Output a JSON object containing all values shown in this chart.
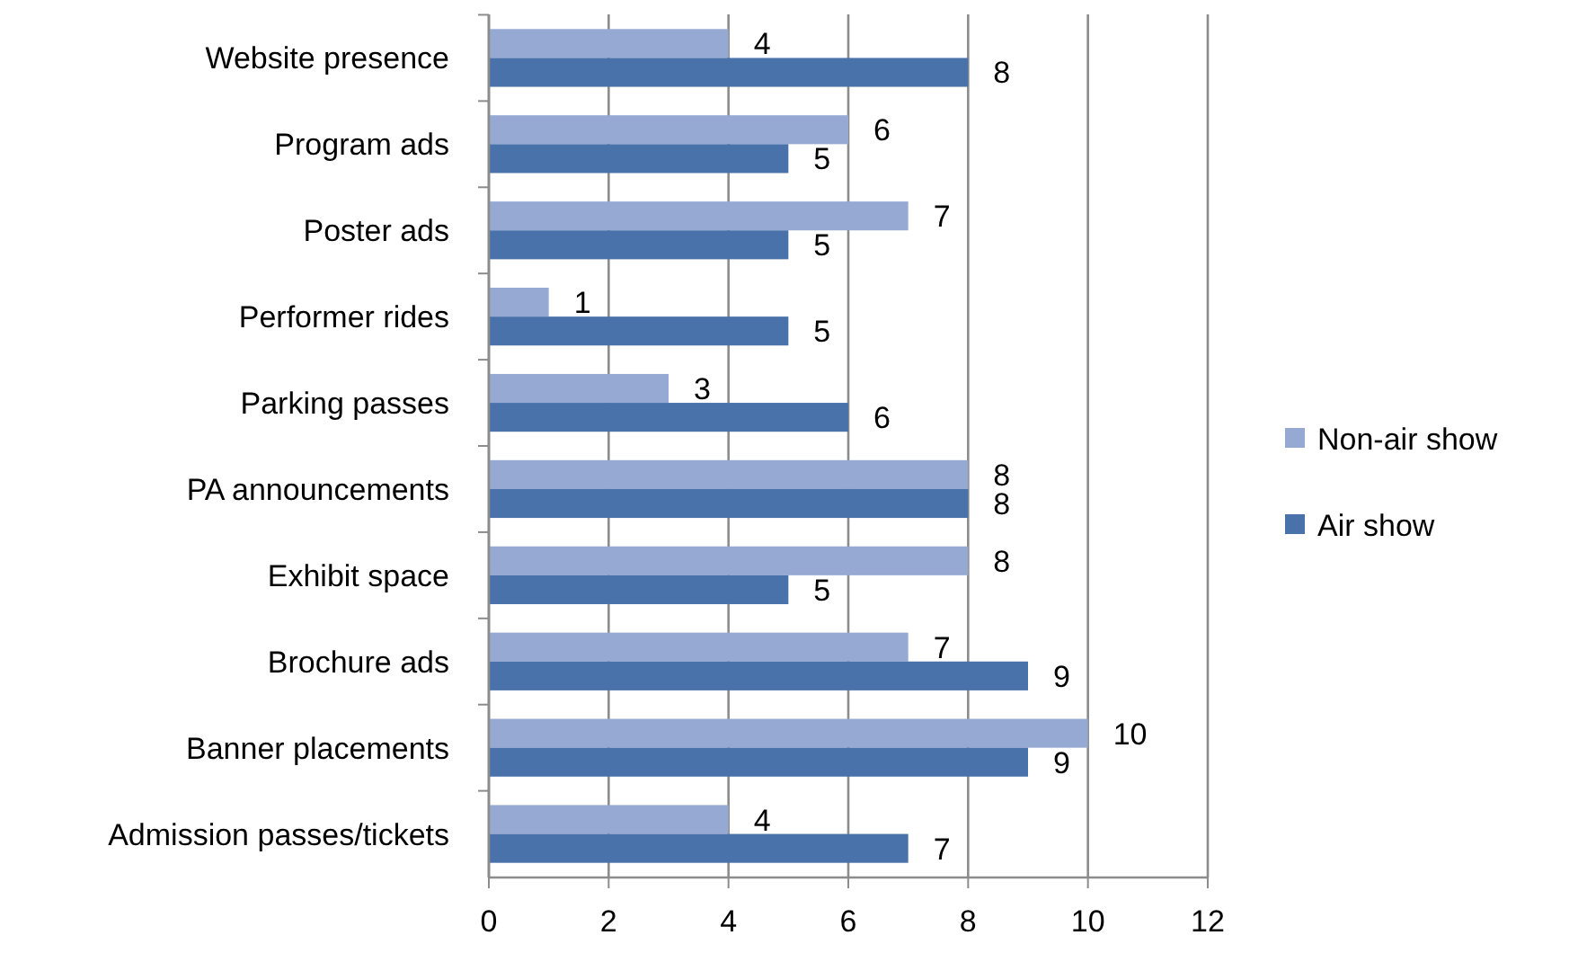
{
  "chart_data": {
    "type": "bar",
    "orientation": "horizontal",
    "categories": [
      "Website presence",
      "Program ads",
      "Poster ads",
      "Performer rides",
      "Parking passes",
      "PA announcements",
      "Exhibit space",
      "Brochure ads",
      "Banner placements",
      "Admission passes/tickets"
    ],
    "series": [
      {
        "name": "Non-air show",
        "color": "#95a9d3",
        "values": [
          4,
          6,
          7,
          1,
          3,
          8,
          8,
          7,
          10,
          4
        ]
      },
      {
        "name": "Air show",
        "color": "#4a72aa",
        "values": [
          8,
          5,
          5,
          5,
          6,
          8,
          5,
          9,
          9,
          7
        ]
      }
    ],
    "xlim": [
      0,
      12
    ],
    "xticks": [
      0,
      2,
      4,
      6,
      8,
      10,
      12
    ],
    "grid": "x",
    "legend": "right",
    "data_labels": true
  }
}
